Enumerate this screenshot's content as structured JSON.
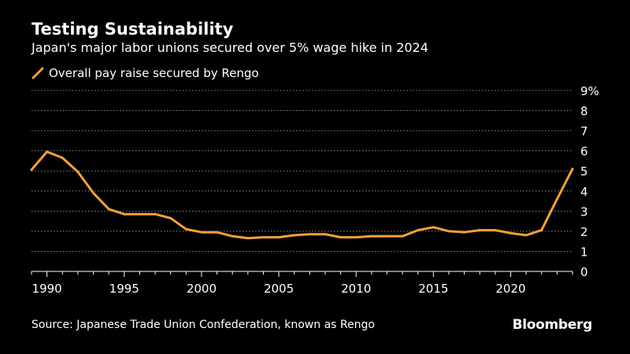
{
  "header": {
    "title": "Testing Sustainability",
    "subtitle": "Japan's major labor unions secured over 5% wage hike in 2024"
  },
  "footer": {
    "source": "Source: Japanese Trade Union Confederation, known as Rengo",
    "brand": "Bloomberg"
  },
  "colors": {
    "background": "#000000",
    "series": "#f2a03d",
    "grid": "#8a8a8a",
    "text": "#ffffff"
  },
  "chart_data": {
    "type": "line",
    "title": "Testing Sustainability",
    "subtitle": "Japan's major labor unions secured over 5% wage hike in 2024",
    "xlabel": "",
    "ylabel": "",
    "xlim": [
      1989,
      2024
    ],
    "ylim": [
      0,
      9
    ],
    "grid": true,
    "legend_position": "top-left",
    "x_ticks": [
      1990,
      1995,
      2000,
      2005,
      2010,
      2015,
      2020
    ],
    "x_tick_labels": [
      "1990",
      "1995",
      "2000",
      "2005",
      "2010",
      "2015",
      "2020"
    ],
    "y_ticks": [
      0,
      1,
      2,
      3,
      4,
      5,
      6,
      7,
      8,
      9
    ],
    "y_tick_labels": [
      "0",
      "1",
      "2",
      "3",
      "4",
      "5",
      "6",
      "7",
      "8",
      "9%"
    ],
    "series": [
      {
        "name": "Overall pay raise secured by Rengo",
        "x": [
          1989,
          1990,
          1991,
          1992,
          1993,
          1994,
          1995,
          1996,
          1997,
          1998,
          1999,
          2000,
          2001,
          2002,
          2003,
          2004,
          2005,
          2006,
          2007,
          2008,
          2009,
          2010,
          2011,
          2012,
          2013,
          2014,
          2015,
          2016,
          2017,
          2018,
          2019,
          2020,
          2021,
          2022,
          2023,
          2024
        ],
        "values": [
          5.05,
          5.95,
          5.65,
          4.95,
          3.9,
          3.1,
          2.85,
          2.85,
          2.85,
          2.65,
          2.1,
          1.95,
          1.95,
          1.75,
          1.65,
          1.7,
          1.7,
          1.8,
          1.85,
          1.85,
          1.7,
          1.7,
          1.75,
          1.75,
          1.75,
          2.05,
          2.2,
          2.0,
          1.95,
          2.05,
          2.05,
          1.9,
          1.8,
          2.05,
          3.6,
          5.1
        ]
      }
    ]
  }
}
